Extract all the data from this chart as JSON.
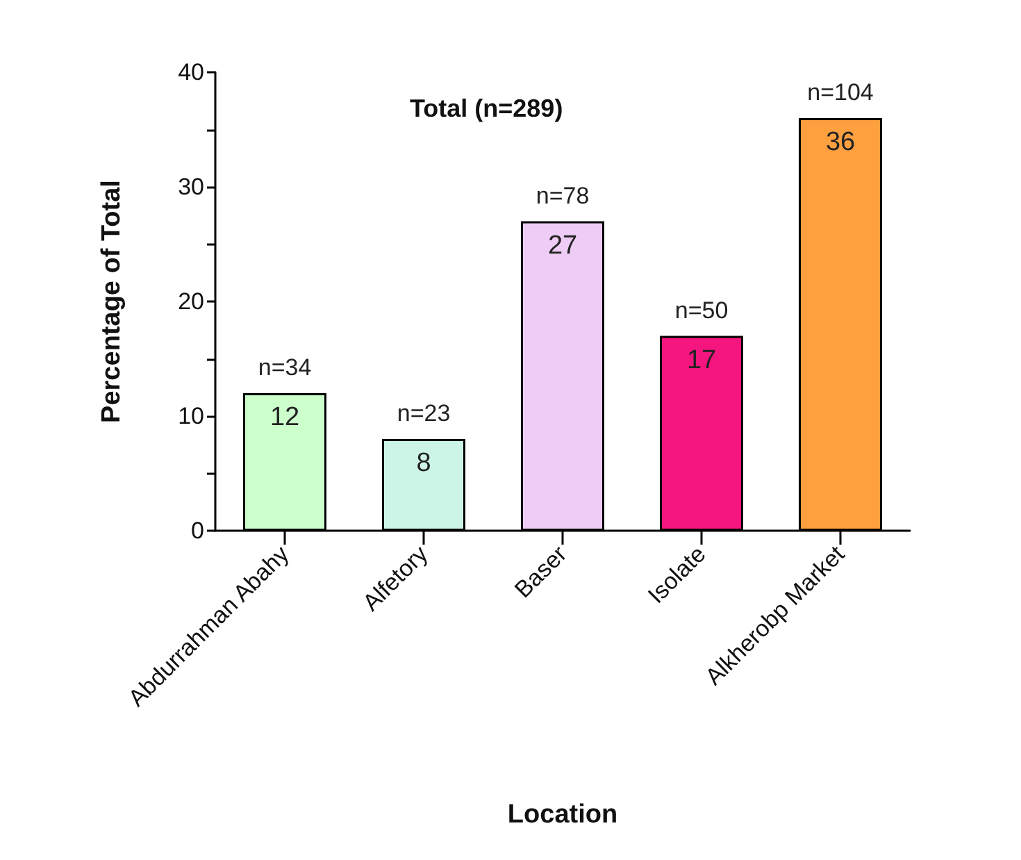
{
  "chart_data": {
    "type": "bar",
    "title": "Total (n=289)",
    "xlabel": "Location",
    "ylabel": "Percentage of Total",
    "categories": [
      "Abdurrahman Abahy",
      "Alfetory",
      "Baser",
      "Isolate",
      "Alkherobp Market"
    ],
    "values": [
      12,
      8,
      27,
      17,
      36
    ],
    "colors": [
      "#ccffcc",
      "#ccf5e8",
      "#eeccf5",
      "#f5157f",
      "#ffa040"
    ],
    "ylim": [
      0,
      40
    ],
    "yticks": [
      0,
      {
        "value": 5,
        "label": null
      },
      10,
      {
        "value": 15,
        "label": null
      },
      20,
      {
        "value": 25,
        "label": null
      },
      30,
      {
        "value": 35,
        "label": null
      },
      40
    ],
    "data_labels": true,
    "grid": false,
    "annotations": [
      {
        "text": "n=34",
        "x": "Abdurrahman Abahy",
        "y": 12
      },
      {
        "text": "n=23",
        "x": "Alfetory",
        "y": 8
      },
      {
        "text": "n=78",
        "x": "Baser",
        "y": 27
      },
      {
        "text": "n=50",
        "x": "Isolate",
        "y": 17
      },
      {
        "text": "n=104",
        "x": "Alkherobp Market",
        "y": 36
      }
    ]
  }
}
